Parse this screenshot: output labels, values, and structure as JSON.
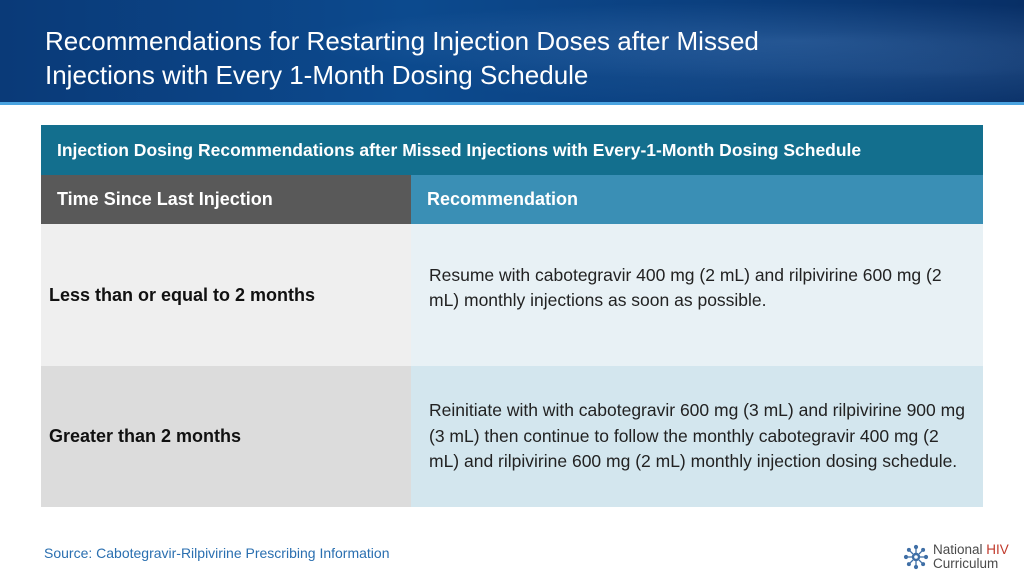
{
  "slide": {
    "title_line1": "Recommendations for Restarting Injection Doses after Missed",
    "title_line2": "Injections with Every 1-Month Dosing Schedule"
  },
  "table": {
    "caption": "Injection Dosing Recommendations after Missed Injections with Every-1-Month Dosing Schedule",
    "headers": [
      "Time Since Last Injection",
      "Recommendation"
    ],
    "rows": [
      {
        "time": "Less than or equal to 2 months",
        "recommendation": "Resume with cabotegravir 400 mg (2 mL) and rilpivirine 600 mg (2 mL) monthly injections as soon as possible."
      },
      {
        "time": "Greater than 2 months",
        "recommendation": "Reinitiate with with cabotegravir 600 mg (3 mL) and rilpivirine 900 mg (3 mL) then continue to follow the monthly cabotegravir 400 mg (2 mL) and rilpivirine 600 mg (2 mL) monthly injection dosing schedule."
      }
    ]
  },
  "footer": {
    "source": "Source: Cabotegravir-Rilpivirine Prescribing Information",
    "logo_word1": "National",
    "logo_word2": "HIV",
    "logo_word3": "Curriculum",
    "logo_icon": "gear-network-icon"
  },
  "colors": {
    "header_bg": "#0c4a8e",
    "caption_bg": "#136f8e",
    "th_left_bg": "#595959",
    "th_right_bg": "#3a8fb5",
    "source_text": "#2a6fb0",
    "logo_accent": "#c0392b"
  }
}
